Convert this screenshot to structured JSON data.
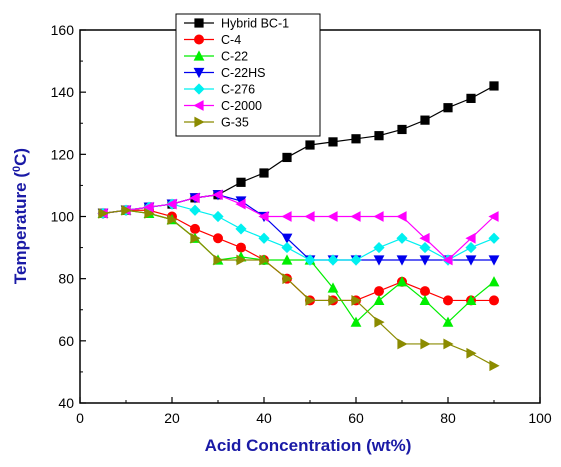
{
  "chart_data": {
    "type": "line",
    "title": "",
    "xlabel": "Acid Concentration (wt%)",
    "ylabel_main": "Temperature (",
    "ylabel_sup": "0",
    "ylabel_end": "C)",
    "xlim": [
      0,
      100
    ],
    "ylim": [
      40,
      160
    ],
    "x_ticks": [
      0,
      20,
      40,
      60,
      80,
      100
    ],
    "y_ticks": [
      40,
      60,
      80,
      100,
      120,
      140,
      160
    ],
    "grid": false,
    "legend_position": "top-left",
    "series": [
      {
        "name": "Hybrid BC-1",
        "marker": "square",
        "color": "#000000",
        "x": [
          5,
          10,
          15,
          20,
          25,
          30,
          35,
          40,
          45,
          50,
          55,
          60,
          65,
          70,
          75,
          80,
          85,
          90
        ],
        "y": [
          101,
          102,
          103,
          104,
          106,
          107,
          111,
          114,
          119,
          123,
          124,
          125,
          126,
          128,
          131,
          135,
          138,
          142
        ]
      },
      {
        "name": "C-4",
        "marker": "circle",
        "color": "#ff0000",
        "x": [
          5,
          10,
          15,
          20,
          25,
          30,
          35,
          40,
          45,
          50,
          55,
          60,
          65,
          70,
          75,
          80,
          85,
          90
        ],
        "y": [
          101,
          102,
          102,
          100,
          96,
          93,
          90,
          86,
          80,
          73,
          73,
          73,
          76,
          79,
          76,
          73,
          73,
          73
        ]
      },
      {
        "name": "C-22",
        "marker": "triangle-up",
        "color": "#00ee00",
        "x": [
          5,
          10,
          15,
          20,
          25,
          30,
          35,
          40,
          45,
          50,
          55,
          60,
          65,
          70,
          75,
          80,
          85,
          90
        ],
        "y": [
          101,
          102,
          101,
          99,
          93,
          86,
          87,
          86,
          86,
          86,
          77,
          66,
          73,
          79,
          73,
          66,
          73,
          79
        ]
      },
      {
        "name": "C-22HS",
        "marker": "triangle-down",
        "color": "#0000ee",
        "x": [
          5,
          10,
          15,
          20,
          25,
          30,
          35,
          40,
          45,
          50,
          55,
          60,
          65,
          70,
          75,
          80,
          85,
          90
        ],
        "y": [
          101,
          102,
          103,
          104,
          106,
          107,
          105,
          100,
          93,
          86,
          86,
          86,
          86,
          86,
          86,
          86,
          86,
          86
        ]
      },
      {
        "name": "C-276",
        "marker": "diamond",
        "color": "#00f0f0",
        "x": [
          5,
          10,
          15,
          20,
          25,
          30,
          35,
          40,
          45,
          50,
          55,
          60,
          65,
          70,
          75,
          80,
          85,
          90
        ],
        "y": [
          101,
          102,
          103,
          104,
          102,
          100,
          96,
          93,
          90,
          86,
          86,
          86,
          90,
          93,
          90,
          86,
          90,
          93
        ]
      },
      {
        "name": "C-2000",
        "marker": "triangle-left",
        "color": "#ff00ff",
        "x": [
          5,
          10,
          15,
          20,
          25,
          30,
          35,
          40,
          45,
          50,
          55,
          60,
          65,
          70,
          75,
          80,
          85,
          90
        ],
        "y": [
          101,
          102,
          103,
          104,
          106,
          107,
          104,
          100,
          100,
          100,
          100,
          100,
          100,
          100,
          93,
          86,
          93,
          100
        ]
      },
      {
        "name": "G-35",
        "marker": "triangle-right",
        "color": "#8b8b00",
        "x": [
          5,
          10,
          15,
          20,
          25,
          30,
          35,
          40,
          45,
          50,
          55,
          60,
          65,
          70,
          75,
          80,
          85,
          90
        ],
        "y": [
          101,
          102,
          101,
          99,
          93,
          86,
          86,
          86,
          80,
          73,
          73,
          73,
          66,
          59,
          59,
          59,
          56,
          52
        ]
      }
    ]
  }
}
